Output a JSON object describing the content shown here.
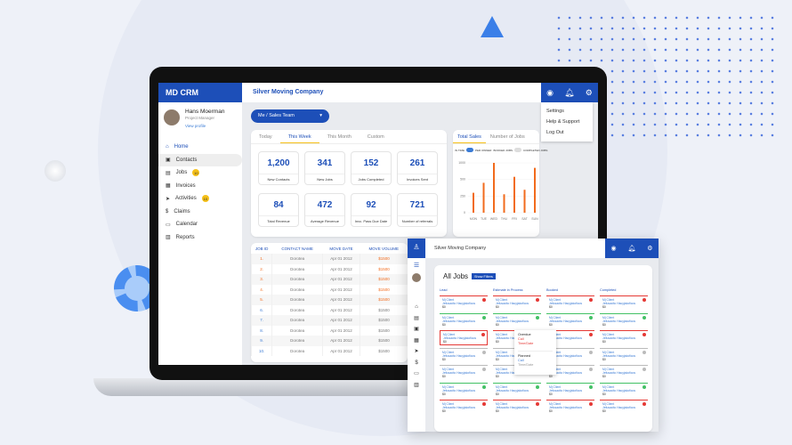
{
  "app": {
    "logo": "MD CRM",
    "company": "Silver Moving Company"
  },
  "user": {
    "name": "Hans Moerman",
    "role": "Project Manager",
    "profile_link": "View profile"
  },
  "nav": [
    {
      "label": "Home",
      "icon": "home-icon"
    },
    {
      "label": "Contacts",
      "icon": "contacts-icon"
    },
    {
      "label": "Jobs",
      "icon": "briefcase-icon",
      "badge": "10"
    },
    {
      "label": "Invoices",
      "icon": "invoice-icon"
    },
    {
      "label": "Activities",
      "icon": "send-icon",
      "badge": "10"
    },
    {
      "label": "Claims",
      "icon": "dollar-icon"
    },
    {
      "label": "Calendar",
      "icon": "calendar-icon"
    },
    {
      "label": "Reports",
      "icon": "reports-icon"
    }
  ],
  "header_menu": [
    "Settings",
    "Help & Support",
    "Log Out"
  ],
  "team_select": "Me / Sales Team",
  "period_tabs": [
    "Today",
    "This Week",
    "This Month",
    "Custom"
  ],
  "active_period": "This Week",
  "stats": [
    {
      "value": "1,200",
      "label": "New Contacts"
    },
    {
      "value": "341",
      "label": "New Jobs"
    },
    {
      "value": "152",
      "label": "Jobs Completed"
    },
    {
      "value": "261",
      "label": "Invoices Sent"
    },
    {
      "value": "84",
      "label": "Total Revenue"
    },
    {
      "value": "472",
      "label": "Average Revenue"
    },
    {
      "value": "92",
      "label": "Invc. Pass Due Date"
    },
    {
      "value": "721",
      "label": "Number of referrals"
    }
  ],
  "sales_tabs": [
    "Total Sales",
    "Number of Jobs"
  ],
  "toggles": {
    "left": "IN TIME",
    "mid": "PER OWNER",
    "right1": "BOOKED JOBS",
    "right2": "COMPLETED JOBS"
  },
  "chart_data": {
    "type": "bar",
    "categories": [
      "MON",
      "TUE",
      "WED",
      "THU",
      "FRI",
      "SAT",
      "SUN"
    ],
    "values": [
      400,
      600,
      1000,
      370,
      720,
      460,
      900
    ],
    "ytick_labels": [
      "1000",
      "500",
      "250",
      "0"
    ],
    "ylim": [
      0,
      1000
    ],
    "color": "#f26b1d"
  },
  "table": {
    "headers": [
      "JOB ID",
      "CONTACT NAME",
      "MOVE DATE",
      "MOVE VOLUME"
    ],
    "rows": [
      [
        "1.",
        "Dorotea",
        "Apr 01 2012",
        "$1500"
      ],
      [
        "2.",
        "Dorotea",
        "Apr 01 2012",
        "$1500"
      ],
      [
        "3.",
        "Dorotea",
        "Apr 01 2012",
        "$1500"
      ],
      [
        "4.",
        "Dorotea",
        "Apr 01 2012",
        "$1500"
      ],
      [
        "5.",
        "Dorotea",
        "Apr 01 2012",
        "$1500"
      ],
      [
        "6.",
        "Dorotea",
        "Apr 01 2012",
        "$1500"
      ],
      [
        "7.",
        "Dorotea",
        "Apr 01 2012",
        "$1500"
      ],
      [
        "8.",
        "Dorotea",
        "Apr 01 2012",
        "$1500"
      ],
      [
        "9.",
        "Dorotea",
        "Apr 01 2012",
        "$1500"
      ],
      [
        "10.",
        "Dorotea",
        "Apr 01 2012",
        "$1500"
      ]
    ]
  },
  "jobs": {
    "title": "All Jobs",
    "filter_button": "Show Filters",
    "columns": [
      "Lead",
      "Estimate in Process",
      "Booked",
      "Completed"
    ],
    "card": {
      "line1": "Mj Client",
      "line2": "Jefusacito Hacyjakoficos",
      "line3": "$0"
    },
    "status_pattern": [
      "red",
      "green",
      "red",
      "gray",
      "gray",
      "green",
      "red"
    ],
    "popup": {
      "overdue": "Overdue",
      "overdue_call": "Call",
      "overdue_time": "Time/Date",
      "planned": "Planned",
      "planned_call": "Call",
      "planned_time": "Time/Date"
    }
  },
  "colors": {
    "brand": "#1d4fb8",
    "accent": "#f5c018",
    "bar": "#f26b1d",
    "red": "#e53935",
    "green": "#43c165",
    "gray": "#bbbbbb"
  }
}
